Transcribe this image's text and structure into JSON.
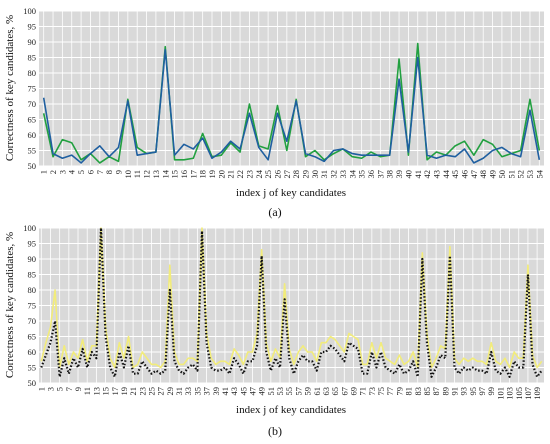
{
  "chart_data": [
    {
      "type": "line",
      "panel_label": "(a)",
      "ylabel": "Correctness of key candidates, %",
      "xlabel": "index j of key candidates",
      "ylim": [
        50,
        100
      ],
      "yticks": [
        50,
        55,
        60,
        65,
        70,
        75,
        80,
        85,
        90,
        95,
        100
      ],
      "x": [
        1,
        2,
        3,
        4,
        5,
        6,
        7,
        8,
        9,
        10,
        11,
        12,
        13,
        14,
        15,
        16,
        17,
        18,
        19,
        20,
        21,
        22,
        23,
        24,
        25,
        26,
        27,
        28,
        29,
        30,
        31,
        32,
        33,
        34,
        35,
        36,
        37,
        38,
        39,
        40,
        41,
        42,
        43,
        44,
        45,
        46,
        47,
        48,
        49,
        50,
        51,
        52,
        53,
        54
      ],
      "grid": true,
      "legend": "none",
      "series": [
        {
          "color": "#1f5fa0",
          "values": [
            72,
            54,
            52.5,
            53.5,
            51,
            54,
            56.5,
            53,
            56,
            71,
            53.5,
            54,
            54.5,
            87.5,
            53.5,
            57,
            55.5,
            59,
            52.5,
            54.5,
            58,
            55.5,
            67,
            56,
            52,
            67,
            58,
            71,
            54,
            53,
            51.5,
            55,
            55.5,
            54,
            53.5,
            53.5,
            53.5,
            53.5,
            78,
            54.5,
            85,
            53.5,
            52.5,
            53.5,
            53,
            55.5,
            51,
            52.5,
            55,
            56,
            54,
            53,
            68,
            52
          ]
        },
        {
          "color": "#22a040",
          "values": [
            67,
            53,
            58.5,
            57.5,
            52,
            54,
            51,
            53,
            51.5,
            71.5,
            56,
            54,
            54.5,
            88.5,
            52,
            52,
            52.5,
            60.5,
            53,
            53.5,
            57.5,
            54.5,
            70,
            56.5,
            55.5,
            69.5,
            55,
            71.5,
            53,
            55,
            52,
            54,
            55.5,
            53,
            52.5,
            54.5,
            53,
            53.5,
            84.5,
            53.5,
            89.5,
            52,
            54.5,
            53.5,
            56.5,
            58,
            53.5,
            58.5,
            57,
            53,
            54,
            55,
            71.5,
            55
          ]
        }
      ]
    },
    {
      "type": "line",
      "panel_label": "(b)",
      "ylabel": "Correctness of key candidates, %",
      "xlabel": "index j of key candidates",
      "ylim": [
        50,
        100
      ],
      "yticks": [
        50,
        55,
        60,
        65,
        70,
        75,
        80,
        85,
        90,
        95,
        100
      ],
      "x_count": 110,
      "xtick_labels": [
        1,
        3,
        5,
        7,
        9,
        11,
        13,
        15,
        17,
        19,
        21,
        23,
        25,
        27,
        29,
        31,
        33,
        35,
        37,
        39,
        41,
        43,
        45,
        47,
        49,
        51,
        53,
        55,
        57,
        59,
        61,
        63,
        65,
        67,
        69,
        71,
        73,
        75,
        77,
        79,
        81,
        83,
        85,
        87,
        89,
        91,
        93,
        95,
        97,
        99,
        101,
        103,
        105,
        107,
        109
      ],
      "grid": true,
      "legend": "none",
      "series": [
        {
          "color": "#111111",
          "style": "dotted",
          "values": [
            55,
            59,
            63,
            70,
            52,
            58,
            53,
            58,
            55,
            61,
            55,
            60,
            58,
            100,
            65,
            55,
            52,
            60,
            55,
            62,
            53,
            53,
            57,
            55,
            53,
            54,
            53,
            54,
            80,
            57,
            54,
            53,
            55,
            56,
            54,
            99,
            63,
            55,
            54,
            54,
            55,
            53,
            58,
            56,
            53,
            57,
            57,
            62,
            91,
            60,
            54,
            58,
            55,
            77,
            58,
            53,
            57,
            59,
            57,
            57,
            54,
            60,
            60,
            62,
            61,
            59,
            57,
            63,
            62,
            61,
            53,
            53,
            60,
            55,
            60,
            55,
            54,
            53,
            56,
            53,
            54,
            57,
            52,
            90,
            63,
            52,
            55,
            59,
            58,
            91,
            55,
            53,
            55,
            54,
            55,
            54,
            54,
            53,
            60,
            54,
            53,
            55,
            52,
            57,
            55,
            55,
            85,
            56,
            52,
            54
          ]
        },
        {
          "color": "#f2ec7a",
          "style": "solid",
          "values": [
            57,
            63,
            68,
            80,
            55,
            62,
            56,
            60,
            58,
            64,
            57,
            62,
            62,
            100,
            68,
            58,
            55,
            63,
            58,
            65,
            55,
            56,
            60,
            58,
            56,
            56,
            55,
            57,
            88,
            60,
            56,
            56,
            58,
            58,
            57,
            100,
            66,
            58,
            56,
            57,
            57,
            56,
            61,
            59,
            56,
            60,
            60,
            66,
            93,
            63,
            57,
            61,
            58,
            82,
            61,
            56,
            60,
            62,
            60,
            60,
            57,
            63,
            63,
            65,
            64,
            62,
            60,
            66,
            65,
            64,
            56,
            56,
            63,
            58,
            63,
            58,
            57,
            56,
            59,
            56,
            57,
            60,
            55,
            92,
            66,
            55,
            58,
            62,
            61,
            94,
            58,
            56,
            58,
            57,
            58,
            57,
            57,
            56,
            63,
            57,
            56,
            58,
            55,
            60,
            58,
            58,
            88,
            59,
            55,
            57
          ]
        }
      ]
    }
  ]
}
